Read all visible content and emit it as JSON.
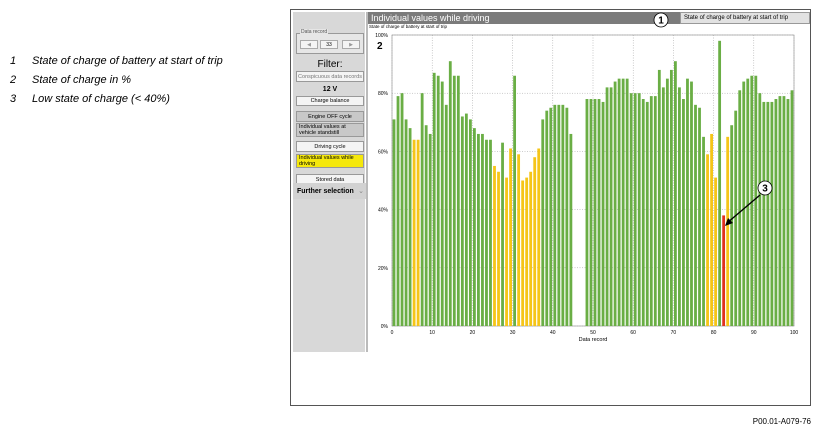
{
  "legend": [
    {
      "num": "1",
      "text": "State of charge of battery at start of trip"
    },
    {
      "num": "2",
      "text": "State of charge in %"
    },
    {
      "num": "3",
      "text": "Low state of charge (< 40%)"
    }
  ],
  "sidebar": {
    "data_record_label": "Data record",
    "record_value": "33",
    "filter_title": "Filter:",
    "conspicuous_btn": "Conspicuous data records",
    "voltage": "12 V",
    "charge_balance": "Charge balance",
    "engine_off": "Engine OFF cycle",
    "indiv_standstill": "Individual values at vehicle standstill",
    "driving_cycle": "Driving cycle",
    "indiv_driving": "Individual values while driving",
    "stored_data": "Stored data",
    "further_selection": "Further selection",
    "further_chevron": "⌄"
  },
  "header": {
    "title": "Individual values while driving",
    "tooltip": "State of charge of battery at start of trip",
    "chart_subtitle": "State of charge of battery at start of trip"
  },
  "callouts": {
    "c1": "1",
    "c2": "2",
    "c3": "3"
  },
  "footer_code": "P00.01-A079-76",
  "colors": {
    "green": "#6aae45",
    "yellow": "#f5c518",
    "red": "#e0301e"
  },
  "chart_data": {
    "type": "bar",
    "xlabel": "Data record",
    "ylabel": "",
    "xlim": [
      0,
      100
    ],
    "ylim": [
      0,
      100
    ],
    "xticks": [
      0,
      10,
      20,
      30,
      40,
      50,
      60,
      70,
      80,
      90,
      100
    ],
    "yticks": [
      0,
      20,
      40,
      60,
      80,
      100
    ],
    "ytick_labels": [
      "0%",
      "20%",
      "40%",
      "60%",
      "80%",
      "100%"
    ],
    "grid": true,
    "x": [
      1,
      2,
      3,
      4,
      5,
      6,
      7,
      8,
      9,
      10,
      11,
      12,
      13,
      14,
      15,
      16,
      17,
      18,
      19,
      20,
      21,
      22,
      23,
      24,
      25,
      26,
      27,
      28,
      29,
      30,
      31,
      32,
      33,
      34,
      35,
      36,
      37,
      38,
      39,
      40,
      41,
      42,
      43,
      44,
      45,
      46,
      47,
      48,
      49,
      50,
      51,
      52,
      53,
      54,
      55,
      56,
      57,
      58,
      59,
      60,
      61,
      62,
      63,
      64,
      65,
      66,
      67,
      68,
      69,
      70,
      71,
      72,
      73,
      74,
      75,
      76,
      77,
      78,
      79,
      80,
      81,
      82,
      83,
      84,
      85,
      86,
      87,
      88,
      89,
      90,
      91,
      92,
      93,
      94,
      95,
      96,
      97,
      98,
      99,
      100
    ],
    "values": [
      71,
      79,
      80,
      71,
      68,
      64,
      64,
      80,
      69,
      66,
      87,
      86,
      84,
      76,
      91,
      86,
      86,
      72,
      73,
      71,
      68,
      66,
      66,
      64,
      64,
      55,
      53,
      63,
      51,
      61,
      86,
      59,
      50,
      51,
      53,
      58,
      61,
      71,
      74,
      75,
      76,
      76,
      76,
      75,
      66,
      0,
      0,
      0,
      78,
      78,
      78,
      78,
      77,
      82,
      82,
      84,
      85,
      85,
      85,
      80,
      80,
      80,
      78,
      77,
      79,
      79,
      88,
      82,
      85,
      88,
      91,
      82,
      78,
      85,
      84,
      76,
      75,
      65,
      59,
      66,
      51,
      98,
      38,
      65,
      69,
      74,
      81,
      84,
      85,
      86,
      86,
      80,
      77,
      77,
      77,
      78,
      79,
      79,
      78,
      81
    ],
    "categories": [
      "green",
      "green",
      "green",
      "green",
      "green",
      "yellow",
      "yellow",
      "green",
      "green",
      "green",
      "green",
      "green",
      "green",
      "green",
      "green",
      "green",
      "green",
      "green",
      "green",
      "green",
      "green",
      "green",
      "green",
      "green",
      "green",
      "yellow",
      "yellow",
      "green",
      "yellow",
      "yellow",
      "green",
      "yellow",
      "yellow",
      "yellow",
      "yellow",
      "yellow",
      "yellow",
      "green",
      "green",
      "green",
      "green",
      "green",
      "green",
      "green",
      "green",
      "green",
      "green",
      "green",
      "green",
      "green",
      "green",
      "green",
      "green",
      "green",
      "green",
      "green",
      "green",
      "green",
      "green",
      "green",
      "green",
      "green",
      "green",
      "green",
      "green",
      "green",
      "green",
      "green",
      "green",
      "green",
      "green",
      "green",
      "green",
      "green",
      "green",
      "green",
      "green",
      "green",
      "yellow",
      "yellow",
      "yellow",
      "green",
      "red",
      "yellow",
      "green",
      "green",
      "green",
      "green",
      "green",
      "green",
      "green",
      "green",
      "green",
      "green",
      "green",
      "green",
      "green",
      "green",
      "green",
      "green"
    ]
  }
}
